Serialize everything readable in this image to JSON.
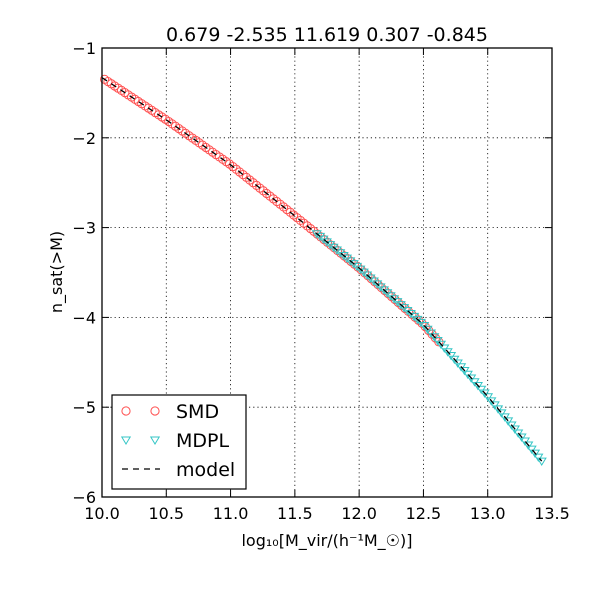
{
  "chart_data": {
    "type": "scatter",
    "title": "0.679 -2.535 11.619 0.307 -0.845",
    "xlabel": "log₁₀[M_vir/(h⁻¹M_☉)]",
    "ylabel": "n_sat(>M)",
    "xlim": [
      10.0,
      13.5
    ],
    "ylim": [
      -6,
      -1
    ],
    "x_ticks": [
      10.0,
      10.5,
      11.0,
      11.5,
      12.0,
      12.5,
      13.0,
      13.5
    ],
    "x_tick_labels": [
      "10.0",
      "10.5",
      "11.0",
      "11.5",
      "12.0",
      "12.5",
      "13.0",
      "13.5"
    ],
    "y_ticks": [
      -1,
      -2,
      -3,
      -4,
      -5,
      -6
    ],
    "y_tick_labels": [
      "−1",
      "−2",
      "−3",
      "−4",
      "−5",
      "−6"
    ],
    "grid": true,
    "legend_position": "lower-left",
    "series": [
      {
        "name": "SMD",
        "marker": "circle",
        "color": "#ff5050",
        "x_range": [
          10.02,
          12.62
        ],
        "n_points": 100
      },
      {
        "name": "MDPL",
        "marker": "triangle-down",
        "color": "#35c6c6",
        "x_range": [
          11.67,
          13.42
        ],
        "n_points": 68
      },
      {
        "name": "model",
        "style": "dashed-line",
        "color": "#000000",
        "x": [
          10.0,
          10.5,
          11.0,
          11.5,
          12.0,
          12.5,
          13.0,
          13.42
        ],
        "y": [
          -1.33,
          -1.8,
          -2.3,
          -2.87,
          -3.45,
          -4.08,
          -4.88,
          -5.6
        ]
      }
    ]
  }
}
